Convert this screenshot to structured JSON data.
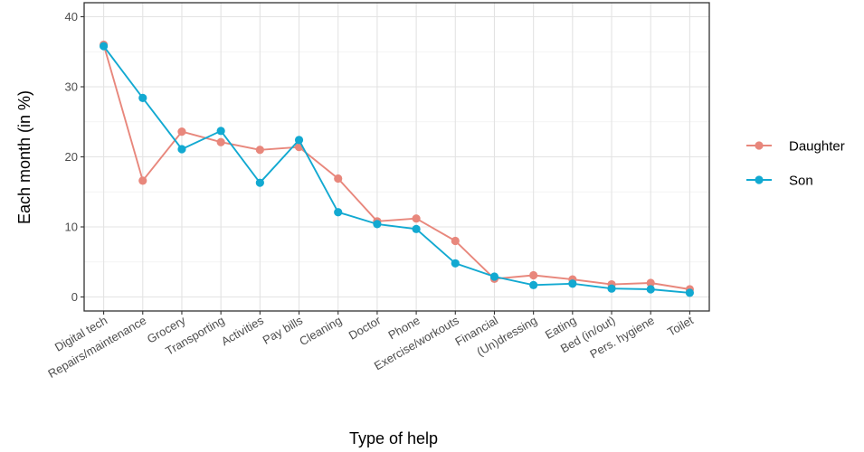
{
  "chart_data": {
    "type": "line",
    "title": "",
    "xlabel": "Type of help",
    "ylabel": "Each month (in %)",
    "ylim": [
      -2,
      42
    ],
    "yticks": [
      0,
      10,
      20,
      30,
      40
    ],
    "grid": true,
    "legend_position": "right",
    "categories": [
      "Digital tech",
      "Repairs/maintenance",
      "Grocery",
      "Transporting",
      "Activities",
      "Pay bills",
      "Cleaning",
      "Doctor",
      "Phone",
      "Exercise/workouts",
      "Financial",
      "(Un)dressing",
      "Eating",
      "Bed (in/out)",
      "Pers. hygiene",
      "Toilet"
    ],
    "series": [
      {
        "name": "Daughter",
        "color": "#e8877c",
        "values": [
          36.0,
          16.6,
          23.6,
          22.1,
          21.0,
          21.4,
          16.9,
          10.8,
          11.2,
          8.0,
          2.6,
          3.1,
          2.5,
          1.8,
          2.0,
          1.1
        ]
      },
      {
        "name": "Son",
        "color": "#12a9d1",
        "values": [
          35.8,
          28.4,
          21.1,
          23.7,
          16.3,
          22.4,
          12.1,
          10.4,
          9.7,
          4.8,
          2.9,
          1.7,
          1.9,
          1.2,
          1.1,
          0.6
        ]
      }
    ]
  }
}
